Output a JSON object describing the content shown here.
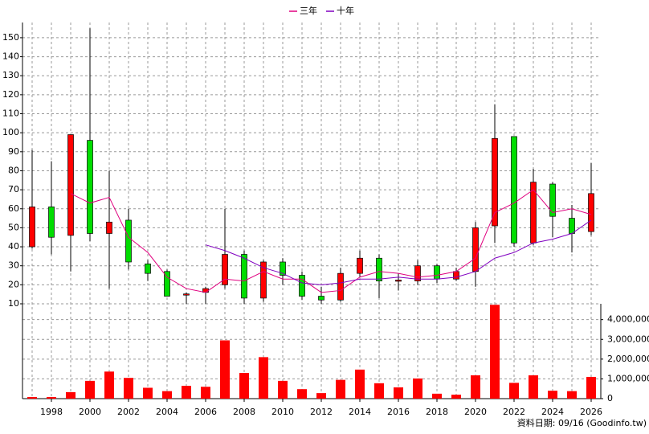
{
  "chart_data": {
    "type": "candlestick",
    "x": [
      1997,
      1998,
      1999,
      2000,
      2001,
      2002,
      2003,
      2004,
      2005,
      2006,
      2007,
      2008,
      2009,
      2010,
      2011,
      2012,
      2013,
      2014,
      2015,
      2016,
      2017,
      2018,
      2019,
      2020,
      2021,
      2022,
      2023,
      2024,
      2025,
      2026
    ],
    "xlim": [
      1996.5,
      2026.5
    ],
    "xticks": [
      1998,
      2000,
      2002,
      2004,
      2006,
      2008,
      2010,
      2012,
      2014,
      2016,
      2018,
      2020,
      2022,
      2024,
      2026
    ],
    "ylim": [
      10,
      158
    ],
    "yticks": [
      10,
      20,
      30,
      40,
      50,
      60,
      70,
      80,
      90,
      100,
      110,
      120,
      130,
      140,
      150
    ],
    "open": [
      40,
      61,
      46,
      96,
      47,
      54,
      31,
      27,
      14.8,
      16,
      20,
      36,
      13,
      32,
      25,
      14,
      12,
      26,
      34,
      22,
      22,
      30,
      23,
      27,
      51,
      98,
      42,
      73,
      55,
      48
    ],
    "high": [
      91,
      85,
      99,
      155,
      80,
      60,
      33,
      28,
      16,
      19,
      60,
      38,
      33,
      34,
      27,
      19,
      29,
      38,
      36,
      26,
      33,
      31,
      29,
      53,
      115,
      98,
      81,
      74,
      62,
      84
    ],
    "low": [
      39,
      36,
      27,
      43,
      18,
      28,
      22,
      14,
      10,
      10,
      18,
      10,
      11,
      20,
      12,
      10,
      11,
      24,
      13,
      17,
      20,
      21,
      22,
      19,
      42,
      40,
      41,
      45,
      37,
      46
    ],
    "close": [
      61,
      45,
      99,
      47,
      53,
      32,
      26,
      14,
      15.2,
      18,
      36,
      13,
      32,
      25,
      14,
      12,
      26,
      34,
      22,
      22.5,
      30,
      23,
      27,
      50,
      97,
      42,
      74,
      56,
      47,
      68
    ],
    "up_color": "#ff0000",
    "down_color": "#00dd00",
    "series": [
      {
        "name": "三年",
        "color": "#e0007f",
        "values": [
          null,
          null,
          68,
          63,
          66,
          45,
          37,
          24,
          18,
          16,
          23,
          22,
          27,
          23,
          23,
          16,
          17,
          24,
          27,
          26,
          24,
          25,
          27,
          34,
          58,
          63,
          70,
          58,
          60,
          57
        ]
      },
      {
        "name": "十年",
        "color": "#8000c0",
        "values": [
          null,
          null,
          null,
          null,
          null,
          null,
          null,
          null,
          null,
          41,
          38,
          34,
          29,
          26,
          21,
          20,
          21,
          23,
          23,
          24,
          23,
          23,
          24,
          27,
          34,
          37,
          42,
          44,
          47,
          54
        ]
      }
    ],
    "volume": {
      "color": "#ff0000",
      "values": [
        80000,
        80000,
        330000,
        900000,
        1370000,
        1050000,
        550000,
        380000,
        650000,
        600000,
        2950000,
        1300000,
        2100000,
        900000,
        480000,
        280000,
        950000,
        1470000,
        780000,
        570000,
        1020000,
        250000,
        200000,
        1180000,
        4750000,
        800000,
        1180000,
        400000,
        380000,
        1100000
      ],
      "ylim": [
        0,
        4800000
      ],
      "yticks": [
        0,
        {
          "value": 1000000,
          "label": "1,000,000"
        },
        {
          "value": 2000000,
          "label": "2,000,000"
        },
        {
          "value": 3000000,
          "label": "3,000,000"
        },
        {
          "value": 4000000,
          "label": "4,000,000"
        }
      ]
    },
    "grid": true,
    "legend": "top",
    "note": "資料日期: 09/16 (Goodinfo.tw)"
  }
}
